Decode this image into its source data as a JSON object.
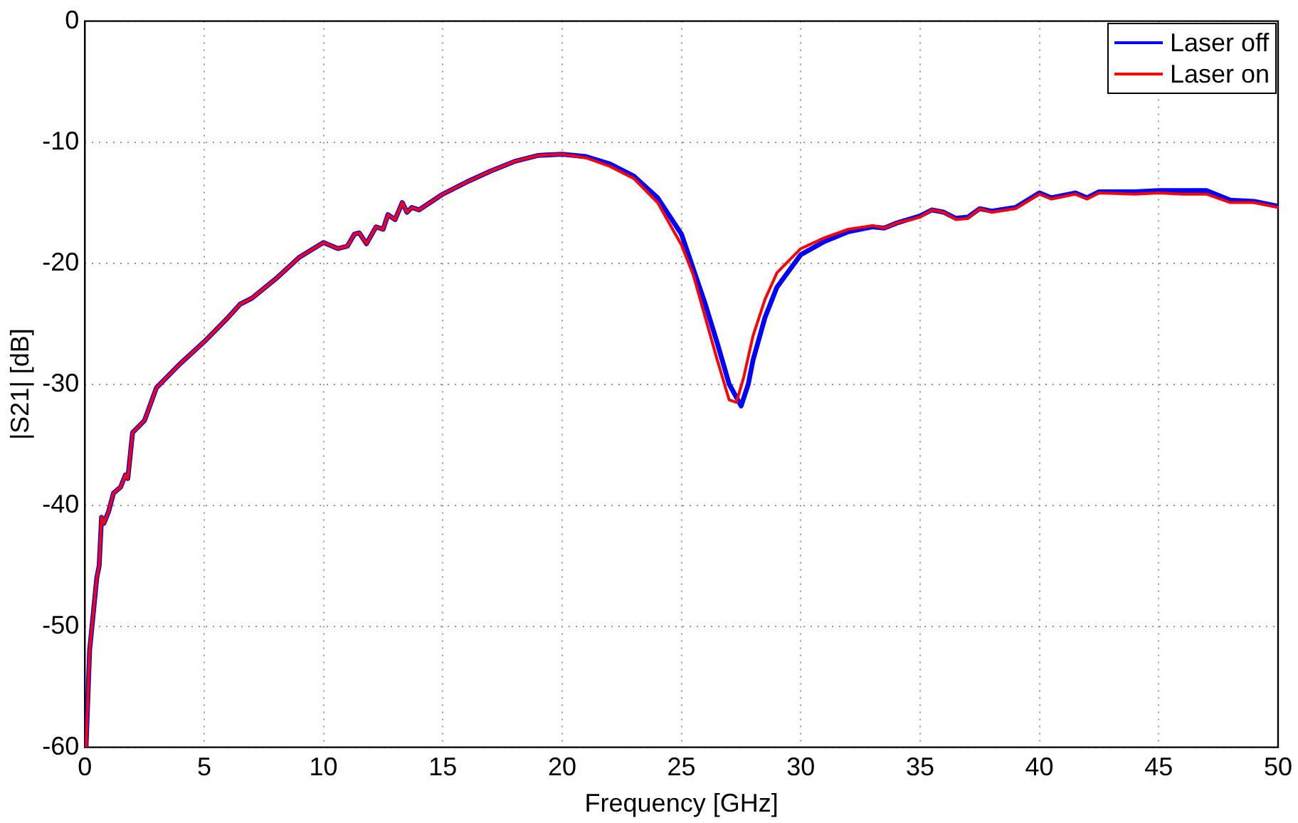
{
  "chart_data": {
    "type": "line",
    "xlabel": "Frequency [GHz]",
    "ylabel": "|S21| [dB]",
    "xlim": [
      0,
      50
    ],
    "xticks": [
      0,
      5,
      10,
      15,
      20,
      25,
      30,
      35,
      40,
      45,
      50
    ],
    "ylim": [
      -60,
      0
    ],
    "yticks": [
      -60,
      -50,
      -40,
      -30,
      -20,
      -10,
      0
    ],
    "grid": true,
    "legend": "top right",
    "marker": "none",
    "line_style": "solid",
    "series": [
      {
        "name": "Laser off",
        "color": "#0000ff",
        "x": [
          0.05,
          0.2,
          0.4,
          0.5,
          0.6,
          0.7,
          0.8,
          1.0,
          1.2,
          1.5,
          1.7,
          1.8,
          2.0,
          2.5,
          3.0,
          4,
          5,
          6,
          6.5,
          7,
          8,
          9,
          10,
          10.6,
          11,
          11.3,
          11.5,
          11.8,
          12.2,
          12.5,
          12.7,
          13,
          13.3,
          13.5,
          13.7,
          14,
          15,
          16,
          17,
          18,
          19,
          20,
          21,
          22,
          23,
          24,
          25,
          26,
          26.5,
          27,
          27.5,
          27.8,
          28,
          28.5,
          29,
          30,
          31,
          32,
          33,
          33.5,
          34,
          35,
          35.5,
          36,
          36.5,
          37,
          37.5,
          38,
          39,
          40,
          40.5,
          41.5,
          42,
          42.5,
          44,
          45,
          46,
          47,
          48,
          49,
          50
        ],
        "values": [
          -60,
          -52,
          -48,
          -46,
          -45,
          -41,
          -41.5,
          -40.5,
          -39,
          -38.5,
          -37.5,
          -37.8,
          -34,
          -33,
          -30.3,
          -28.3,
          -26.5,
          -24.5,
          -23.4,
          -22.9,
          -21.3,
          -19.5,
          -18.3,
          -18.8,
          -18.6,
          -17.6,
          -17.5,
          -18.4,
          -17,
          -17.2,
          -16,
          -16.4,
          -15,
          -15.8,
          -15.4,
          -15.6,
          -14.3,
          -13.3,
          -12.4,
          -11.6,
          -11.1,
          -11,
          -11.2,
          -11.8,
          -12.8,
          -14.6,
          -17.6,
          -23.4,
          -26.6,
          -30,
          -31.8,
          -30,
          -28,
          -24.5,
          -22,
          -19.3,
          -18.2,
          -17.4,
          -17,
          -17.1,
          -16.7,
          -16.1,
          -15.6,
          -15.8,
          -16.3,
          -16.2,
          -15.5,
          -15.7,
          -15.4,
          -14.2,
          -14.6,
          -14.2,
          -14.6,
          -14.1,
          -14.1,
          -14,
          -14,
          -14,
          -14.8,
          -14.9,
          -15.3
        ]
      },
      {
        "name": "Laser on",
        "color": "#ff0000",
        "x": [
          0.05,
          0.2,
          0.4,
          0.5,
          0.6,
          0.7,
          0.8,
          1.0,
          1.2,
          1.5,
          1.7,
          1.8,
          2.0,
          2.5,
          3.0,
          4,
          5,
          6,
          6.5,
          7,
          8,
          9,
          10,
          10.6,
          11,
          11.3,
          11.5,
          11.8,
          12.2,
          12.5,
          12.7,
          13,
          13.3,
          13.5,
          13.7,
          14,
          15,
          16,
          17,
          18,
          19,
          20,
          21,
          22,
          23,
          24,
          25,
          25.5,
          26,
          26.5,
          27,
          27.3,
          27.6,
          28,
          28.5,
          29,
          30,
          31,
          32,
          33,
          33.5,
          34,
          35,
          35.5,
          36,
          36.5,
          37,
          37.5,
          38,
          39,
          40,
          40.5,
          41.5,
          42,
          42.5,
          44,
          45,
          46,
          47,
          48,
          49,
          50
        ],
        "values": [
          -60,
          -52,
          -48,
          -46,
          -45,
          -41,
          -41.5,
          -40.5,
          -39,
          -38.5,
          -37.5,
          -37.8,
          -34,
          -33,
          -30.3,
          -28.3,
          -26.5,
          -24.5,
          -23.4,
          -22.9,
          -21.3,
          -19.5,
          -18.3,
          -18.8,
          -18.6,
          -17.6,
          -17.5,
          -18.4,
          -17,
          -17.2,
          -16,
          -16.4,
          -15,
          -15.8,
          -15.4,
          -15.6,
          -14.3,
          -13.3,
          -12.4,
          -11.6,
          -11.1,
          -11,
          -11.3,
          -12,
          -13,
          -15,
          -18.5,
          -21,
          -24.5,
          -28,
          -31.3,
          -31.5,
          -29.5,
          -26,
          -23,
          -20.8,
          -18.8,
          -17.9,
          -17.2,
          -16.9,
          -17.1,
          -16.7,
          -16.2,
          -15.6,
          -15.8,
          -16.4,
          -16.3,
          -15.5,
          -15.8,
          -15.5,
          -14.3,
          -14.7,
          -14.3,
          -14.7,
          -14.2,
          -14.3,
          -14.2,
          -14.3,
          -14.3,
          -15,
          -15,
          -15.4
        ]
      }
    ]
  }
}
